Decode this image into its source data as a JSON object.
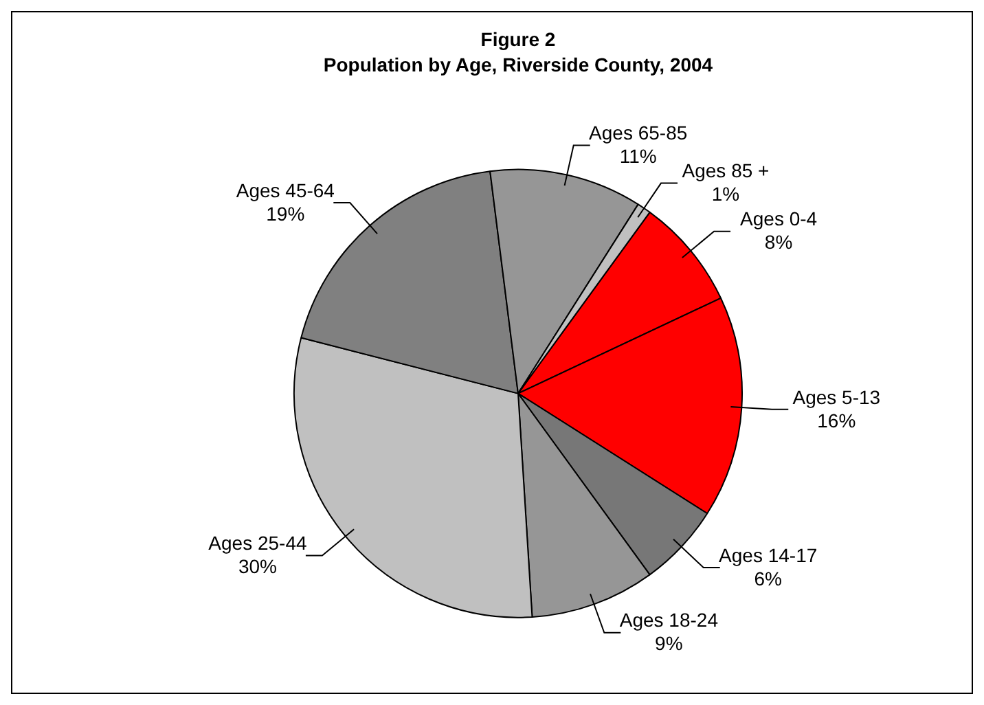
{
  "chart_data": {
    "type": "pie",
    "title": "Figure 2",
    "subtitle": "Population by Age, Riverside County, 2004",
    "categories": [
      "Ages 0-4",
      "Ages 5-13",
      "Ages 14-17",
      "Ages 18-24",
      "Ages 25-44",
      "Ages 45-64",
      "Ages 65-85",
      "Ages 85 +"
    ],
    "values": [
      8,
      16,
      6,
      9,
      30,
      19,
      11,
      1
    ],
    "value_labels": [
      "8%",
      "16%",
      "6%",
      "9%",
      "30%",
      "19%",
      "11%",
      "1%"
    ],
    "colors": [
      "#ff0000",
      "#ff0000",
      "#777777",
      "#969696",
      "#c0c0c0",
      "#808080",
      "#969696",
      "#c0c0c0"
    ],
    "legend": false
  }
}
